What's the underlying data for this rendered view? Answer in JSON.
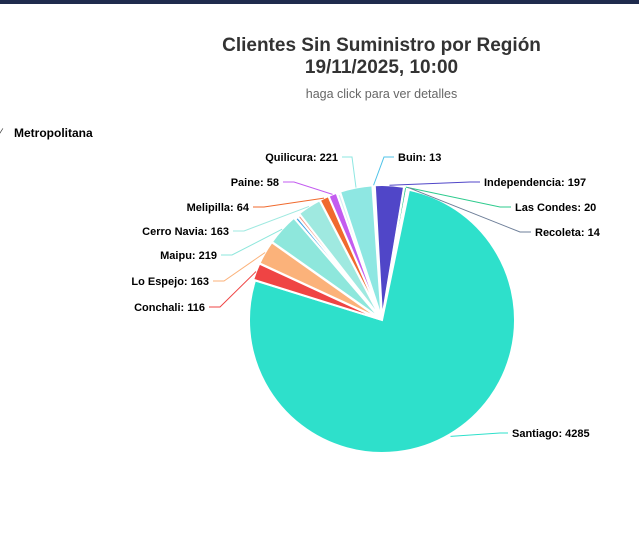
{
  "header": {
    "title_line1": "Clientes Sin Suministro por Región",
    "title_line2": "19/11/2025, 10:00",
    "subtitle": "haga click para ver detalles"
  },
  "legend": {
    "region": "Metropolitana"
  },
  "chart_data": {
    "type": "pie",
    "series": [
      {
        "name": "Metropolitana",
        "points": [
          {
            "name": "Buin",
            "value": 13,
            "color": "#4fc3e8"
          },
          {
            "name": "Independencia",
            "value": 197,
            "color": "#5046c8"
          },
          {
            "name": "Las Condes",
            "value": 20,
            "color": "#2ecb8e"
          },
          {
            "name": "Recoleta",
            "value": 14,
            "color": "#6e7f99"
          },
          {
            "name": "Santiago",
            "value": 4285,
            "color": "#2ee0cb"
          },
          {
            "name": "Conchali",
            "value": 116,
            "color": "#ef4444"
          },
          {
            "name": "Lo Espejo",
            "value": 163,
            "color": "#fbb27a"
          },
          {
            "name": "Maipu",
            "value": 219,
            "color": "#8ee7dc"
          },
          {
            "name": "Cerro Navia",
            "value": 163,
            "color": "#9fe9e0"
          },
          {
            "name": "Melipilla",
            "value": 64,
            "color": "#f06a2e"
          },
          {
            "name": "Paine",
            "value": 58,
            "color": "#c35cf0"
          },
          {
            "name": "Quilicura",
            "value": 221,
            "color": "#8ee7e2"
          }
        ]
      }
    ],
    "extra_slices": [
      {
        "value": 22,
        "color": "#3ea0e6"
      },
      {
        "value": 20,
        "color": "#fb8f7a"
      },
      {
        "value": 22,
        "color": "#d6ecf2"
      }
    ],
    "label_format": "{name}: {value}"
  }
}
